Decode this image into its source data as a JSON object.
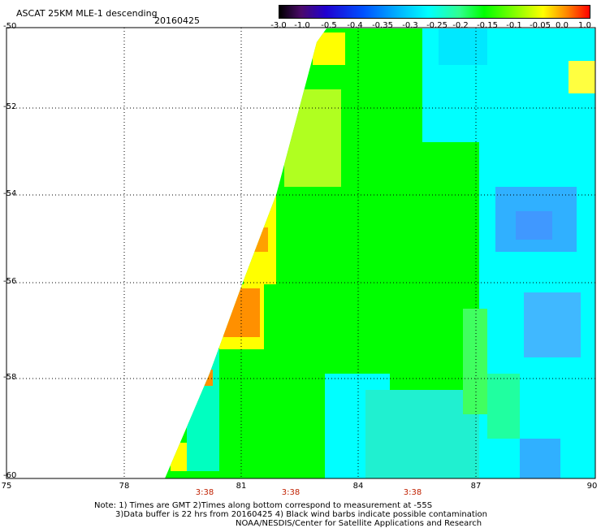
{
  "header": {
    "title": "ASCAT 25KM MLE-1 descending",
    "date": "20160425"
  },
  "colorbar": {
    "ticks": [
      "-3.0",
      "-1.0",
      "-0.5",
      "-0.4",
      "-0.35",
      "-0.3",
      "-0.25",
      "-0.2",
      "-0.15",
      "-0.1",
      "-0.05",
      "0.0",
      "1.0"
    ]
  },
  "map": {
    "x_ticks": [
      "75",
      "78",
      "81",
      "84",
      "87",
      "90"
    ],
    "y_ticks": [
      "-50",
      "-52",
      "-54",
      "-56",
      "-58",
      "-60"
    ],
    "times": [
      "3:38",
      "3:38",
      "3:38"
    ]
  },
  "notes": {
    "line1": "Note: 1) Times are GMT 2)Times along bottom correspond to measurement at -55S",
    "line2": "3)Data buffer is 22 hrs from 20160425 4) Black wind barbs indicate possible contamination",
    "line3": "NOAA/NESDIS/Center for Satellite Applications and Research"
  },
  "colors": {
    "green": "#00ff00",
    "lime": "#50ff30",
    "cyan": "#00ffff",
    "light_blue": "#00c8ff",
    "blue": "#40a0ff",
    "yellow": "#ffff00",
    "orange": "#ff9000"
  }
}
